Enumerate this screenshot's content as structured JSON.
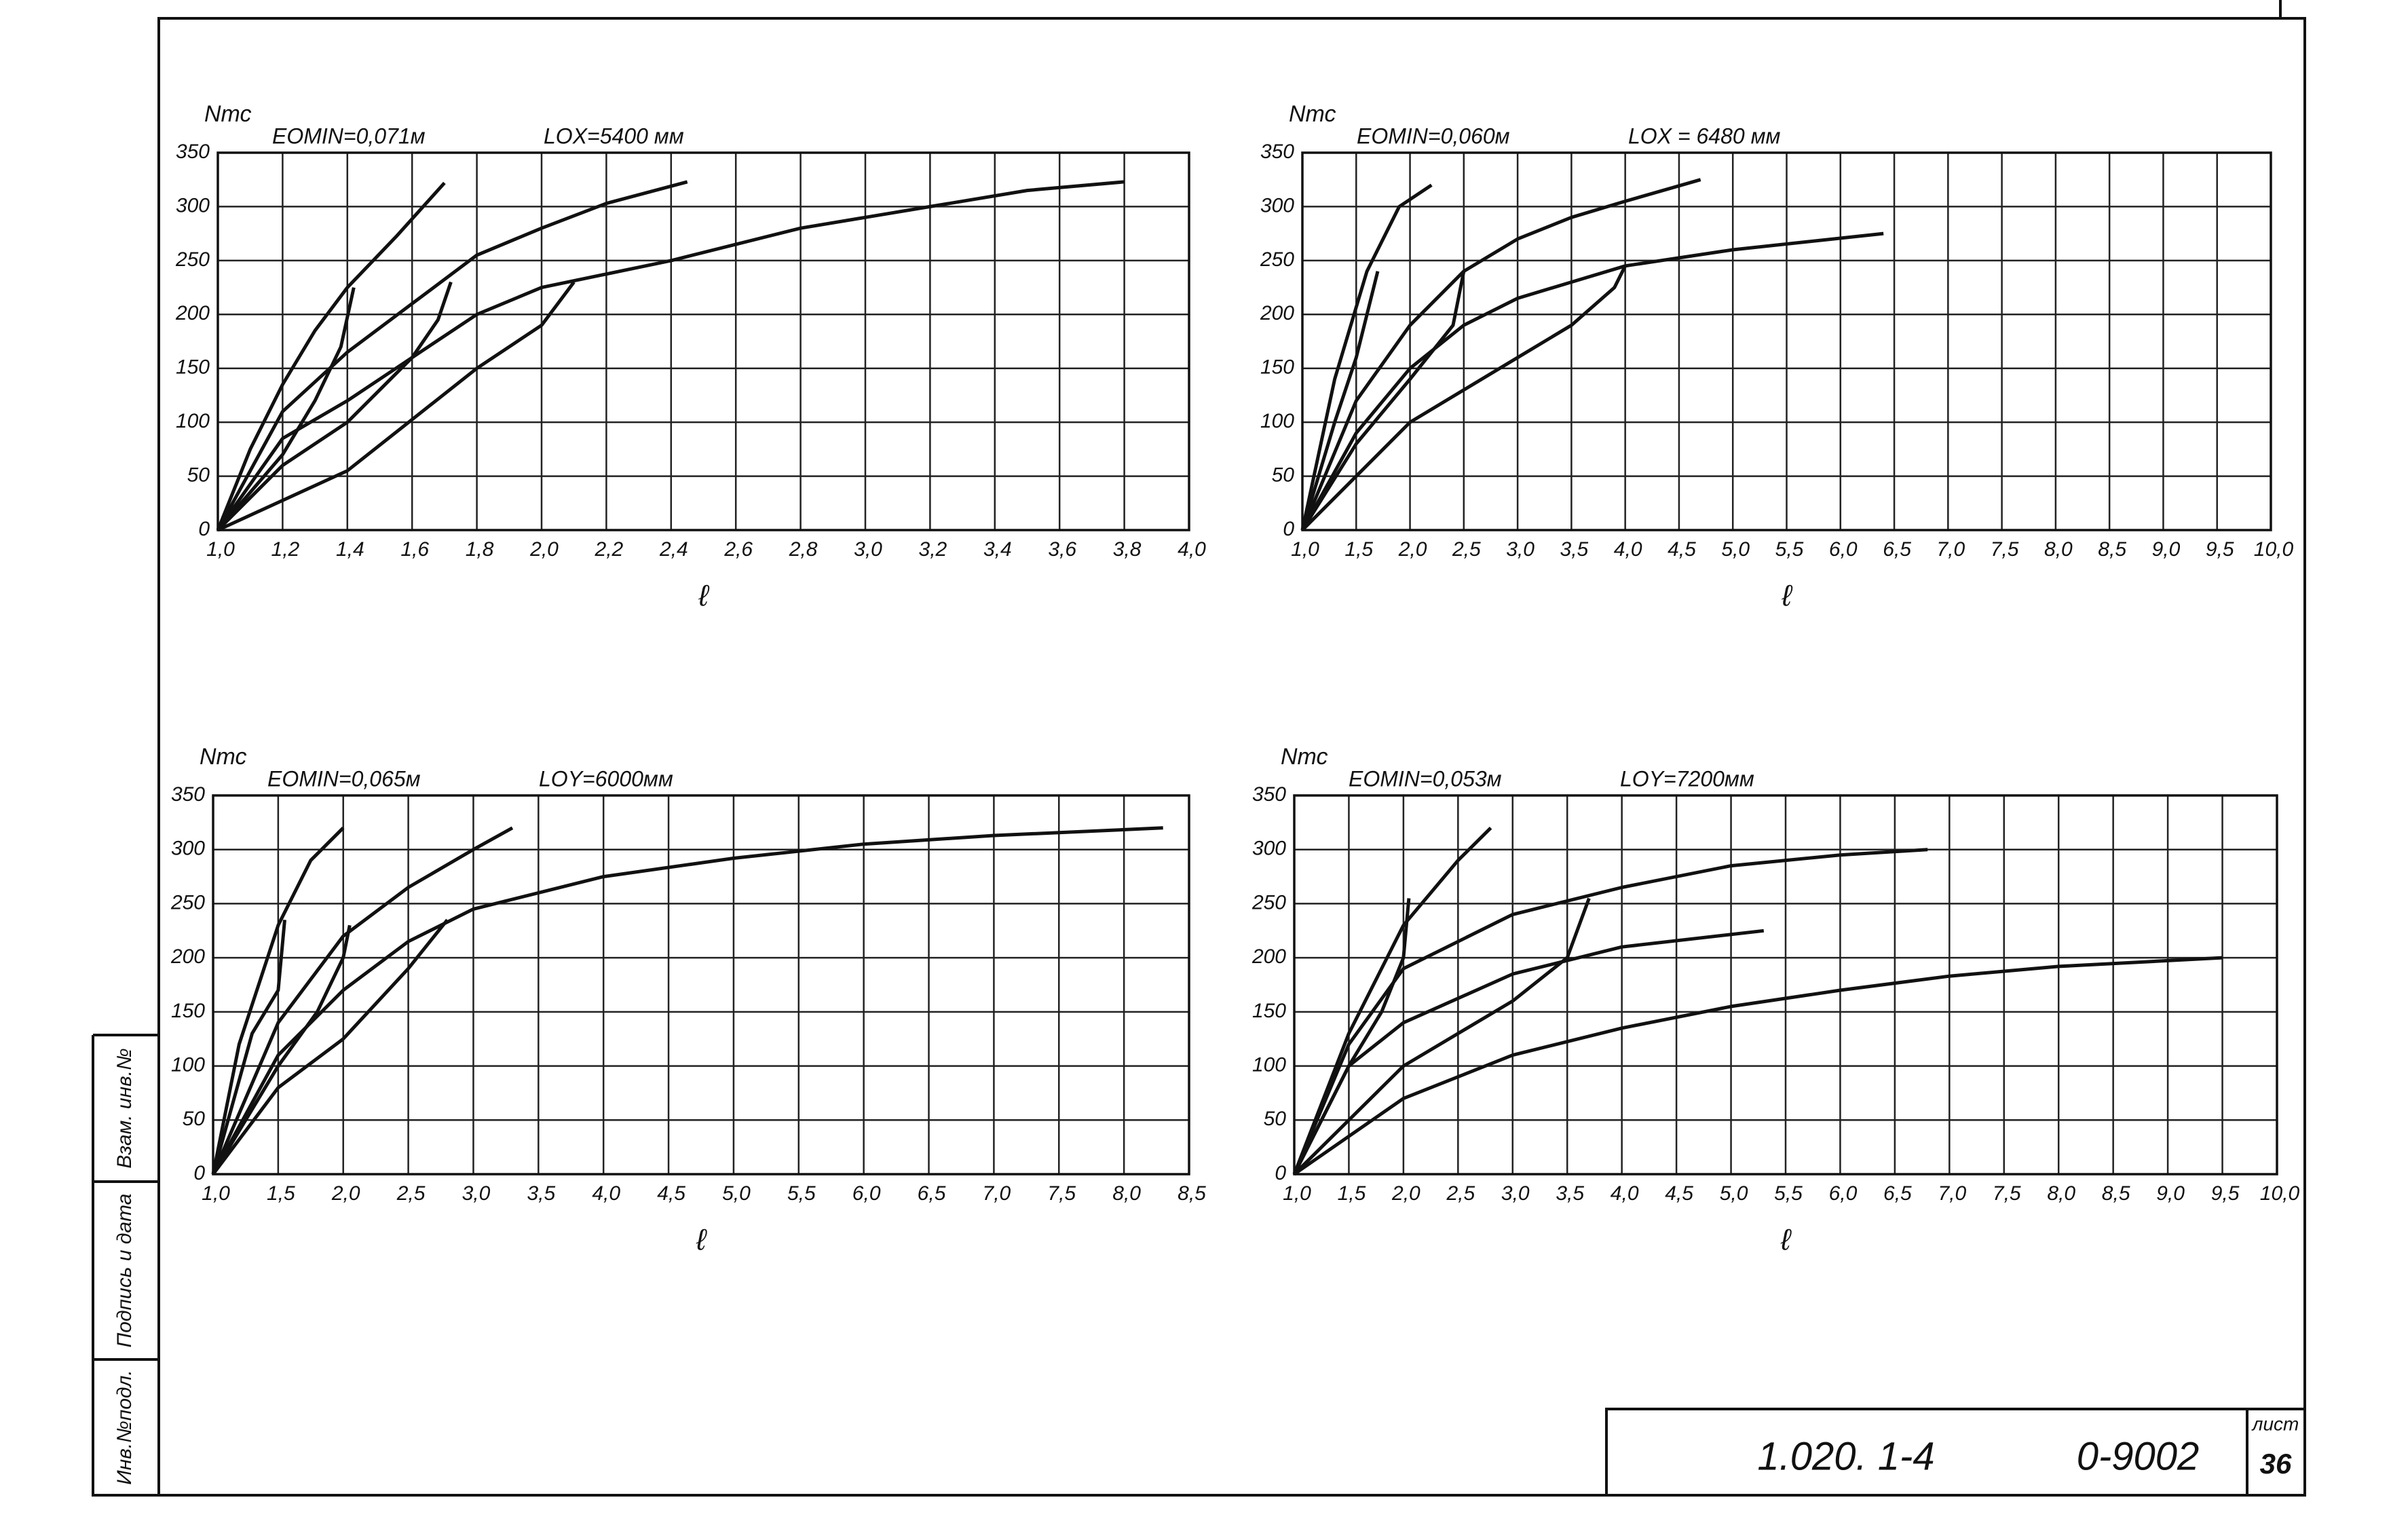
{
  "chart_data": [
    {
      "type": "line",
      "y_label": "Nтс",
      "x_label": "ℓ",
      "annotations": [
        "EOMIN=0,071м",
        "LOX=5400 мм"
      ],
      "grid": true,
      "xlim": [
        1.0,
        4.0
      ],
      "ylim": [
        0,
        350
      ],
      "xticks": [
        {
          "value": 1.0,
          "label": "1,0"
        },
        {
          "value": 1.2,
          "label": "1,2"
        },
        {
          "value": 1.4,
          "label": "1,4"
        },
        {
          "value": 1.6,
          "label": "1,6"
        },
        {
          "value": 1.8,
          "label": "1,8"
        },
        {
          "value": 2.0,
          "label": "2,0"
        },
        {
          "value": 2.2,
          "label": "2,2"
        },
        {
          "value": 2.4,
          "label": "2,4"
        },
        {
          "value": 2.6,
          "label": "2,6"
        },
        {
          "value": 2.8,
          "label": "2,8"
        },
        {
          "value": 3.0,
          "label": "3,0"
        },
        {
          "value": 3.2,
          "label": "3,2"
        },
        {
          "value": 3.4,
          "label": "3,4"
        },
        {
          "value": 3.6,
          "label": "3,6"
        },
        {
          "value": 3.8,
          "label": "3,8"
        },
        {
          "value": 4.0,
          "label": "4,0"
        }
      ],
      "yticks": [
        0,
        50,
        100,
        150,
        200,
        250,
        300,
        350
      ],
      "series": [
        {
          "color": "#111",
          "x": [
            1.0,
            1.1,
            1.2,
            1.3,
            1.4,
            1.55,
            1.7
          ],
          "values": [
            0,
            75,
            135,
            185,
            225,
            272,
            322
          ]
        },
        {
          "color": "#111",
          "x": [
            1.0,
            1.2,
            1.3,
            1.38,
            1.42
          ],
          "values": [
            0,
            70,
            120,
            170,
            225
          ]
        },
        {
          "color": "#111",
          "x": [
            1.0,
            1.2,
            1.4,
            1.6,
            1.8,
            2.0,
            2.2,
            2.45
          ],
          "values": [
            0,
            110,
            165,
            210,
            255,
            280,
            303,
            323
          ]
        },
        {
          "color": "#111",
          "x": [
            1.0,
            1.2,
            1.4,
            1.6,
            1.68,
            1.72
          ],
          "values": [
            0,
            60,
            100,
            160,
            195,
            230
          ]
        },
        {
          "color": "#111",
          "x": [
            1.0,
            1.2,
            1.4,
            1.6,
            1.8,
            2.0,
            2.4,
            2.8,
            3.2,
            3.5,
            3.8
          ],
          "values": [
            0,
            85,
            120,
            160,
            200,
            225,
            250,
            280,
            300,
            315,
            323
          ]
        },
        {
          "color": "#111",
          "x": [
            1.0,
            1.4,
            1.8,
            2.0,
            2.1
          ],
          "values": [
            0,
            55,
            150,
            190,
            230
          ]
        }
      ]
    },
    {
      "type": "line",
      "y_label": "Nтс",
      "x_label": "ℓ",
      "annotations": [
        "EOMIN=0,060м",
        "LOX = 6480 мм"
      ],
      "grid": true,
      "xlim": [
        1.0,
        10.0
      ],
      "ylim": [
        0,
        350
      ],
      "xticks": [
        {
          "value": 1.0,
          "label": "1,0"
        },
        {
          "value": 1.5,
          "label": "1,5"
        },
        {
          "value": 2.0,
          "label": "2,0"
        },
        {
          "value": 2.5,
          "label": "2,5"
        },
        {
          "value": 3.0,
          "label": "3,0"
        },
        {
          "value": 3.5,
          "label": "3,5"
        },
        {
          "value": 4.0,
          "label": "4,0"
        },
        {
          "value": 4.5,
          "label": "4,5"
        },
        {
          "value": 5.0,
          "label": "5,0"
        },
        {
          "value": 5.5,
          "label": "5,5"
        },
        {
          "value": 6.0,
          "label": "6,0"
        },
        {
          "value": 6.5,
          "label": "6,5"
        },
        {
          "value": 7.0,
          "label": "7,0"
        },
        {
          "value": 7.5,
          "label": "7,5"
        },
        {
          "value": 8.0,
          "label": "8,0"
        },
        {
          "value": 8.5,
          "label": "8,5"
        },
        {
          "value": 9.0,
          "label": "9,0"
        },
        {
          "value": 9.5,
          "label": "9,5"
        },
        {
          "value": 10.0,
          "label": "10,0"
        }
      ],
      "yticks": [
        0,
        50,
        100,
        150,
        200,
        250,
        300,
        350
      ],
      "series": [
        {
          "color": "#111",
          "x": [
            1.0,
            1.3,
            1.6,
            1.9,
            2.2
          ],
          "values": [
            0,
            140,
            240,
            300,
            320
          ]
        },
        {
          "color": "#111",
          "x": [
            1.0,
            1.3,
            1.5,
            1.7
          ],
          "values": [
            0,
            100,
            160,
            240
          ]
        },
        {
          "color": "#111",
          "x": [
            1.0,
            1.5,
            2.0,
            2.5,
            3.0,
            3.5,
            4.0,
            4.7
          ],
          "values": [
            0,
            120,
            190,
            240,
            270,
            290,
            305,
            325
          ]
        },
        {
          "color": "#111",
          "x": [
            1.0,
            1.5,
            2.0,
            2.4,
            2.5
          ],
          "values": [
            0,
            80,
            140,
            190,
            240
          ]
        },
        {
          "color": "#111",
          "x": [
            1.0,
            1.5,
            2.0,
            2.5,
            3.0,
            3.5,
            4.0,
            5.0,
            6.4
          ],
          "values": [
            0,
            90,
            150,
            190,
            215,
            230,
            245,
            260,
            275
          ]
        },
        {
          "color": "#111",
          "x": [
            1.0,
            2.0,
            3.0,
            3.5,
            3.9,
            4.0
          ],
          "values": [
            0,
            100,
            160,
            190,
            225,
            245
          ]
        }
      ]
    },
    {
      "type": "line",
      "y_label": "Nтс",
      "x_label": "ℓ",
      "annotations": [
        "EOMIN=0,065м",
        "LOY=6000мм"
      ],
      "grid": true,
      "xlim": [
        1.0,
        8.5
      ],
      "ylim": [
        0,
        350
      ],
      "xticks": [
        {
          "value": 1.0,
          "label": "1,0"
        },
        {
          "value": 1.5,
          "label": "1,5"
        },
        {
          "value": 2.0,
          "label": "2,0"
        },
        {
          "value": 2.5,
          "label": "2,5"
        },
        {
          "value": 3.0,
          "label": "3,0"
        },
        {
          "value": 3.5,
          "label": "3,5"
        },
        {
          "value": 4.0,
          "label": "4,0"
        },
        {
          "value": 4.5,
          "label": "4,5"
        },
        {
          "value": 5.0,
          "label": "5,0"
        },
        {
          "value": 5.5,
          "label": "5,5"
        },
        {
          "value": 6.0,
          "label": "6,0"
        },
        {
          "value": 6.5,
          "label": "6,5"
        },
        {
          "value": 7.0,
          "label": "7,0"
        },
        {
          "value": 7.5,
          "label": "7,5"
        },
        {
          "value": 8.0,
          "label": "8,0"
        },
        {
          "value": 8.5,
          "label": "8,5"
        }
      ],
      "yticks": [
        0,
        50,
        100,
        150,
        200,
        250,
        300,
        350
      ],
      "series": [
        {
          "color": "#111",
          "x": [
            1.0,
            1.2,
            1.5,
            1.75,
            2.0
          ],
          "values": [
            0,
            120,
            230,
            290,
            320
          ]
        },
        {
          "color": "#111",
          "x": [
            1.0,
            1.3,
            1.5,
            1.55
          ],
          "values": [
            0,
            130,
            170,
            235
          ]
        },
        {
          "color": "#111",
          "x": [
            1.0,
            1.5,
            2.0,
            2.5,
            3.0,
            3.3
          ],
          "values": [
            0,
            140,
            220,
            265,
            300,
            320
          ]
        },
        {
          "color": "#111",
          "x": [
            1.0,
            1.5,
            1.8,
            2.0,
            2.05
          ],
          "values": [
            0,
            100,
            150,
            200,
            230
          ]
        },
        {
          "color": "#111",
          "x": [
            1.0,
            1.5,
            2.0,
            2.5,
            3.0,
            4.0,
            5.0,
            6.0,
            7.0,
            8.3
          ],
          "values": [
            0,
            110,
            170,
            215,
            245,
            275,
            292,
            305,
            313,
            320
          ]
        },
        {
          "color": "#111",
          "x": [
            1.0,
            1.5,
            2.0,
            2.5,
            2.8
          ],
          "values": [
            0,
            80,
            125,
            190,
            235
          ]
        }
      ]
    },
    {
      "type": "line",
      "y_label": "Nтс",
      "x_label": "ℓ",
      "annotations": [
        "EOMIN=0,053м",
        "LOY=7200мм"
      ],
      "grid": true,
      "xlim": [
        1.0,
        10.0
      ],
      "ylim": [
        0,
        350
      ],
      "xticks": [
        {
          "value": 1.0,
          "label": "1,0"
        },
        {
          "value": 1.5,
          "label": "1,5"
        },
        {
          "value": 2.0,
          "label": "2,0"
        },
        {
          "value": 2.5,
          "label": "2,5"
        },
        {
          "value": 3.0,
          "label": "3,0"
        },
        {
          "value": 3.5,
          "label": "3,5"
        },
        {
          "value": 4.0,
          "label": "4,0"
        },
        {
          "value": 4.5,
          "label": "4,5"
        },
        {
          "value": 5.0,
          "label": "5,0"
        },
        {
          "value": 5.5,
          "label": "5,5"
        },
        {
          "value": 6.0,
          "label": "6,0"
        },
        {
          "value": 6.5,
          "label": "6,5"
        },
        {
          "value": 7.0,
          "label": "7,0"
        },
        {
          "value": 7.5,
          "label": "7,5"
        },
        {
          "value": 8.0,
          "label": "8,0"
        },
        {
          "value": 8.5,
          "label": "8,5"
        },
        {
          "value": 9.0,
          "label": "9,0"
        },
        {
          "value": 9.5,
          "label": "9,5"
        },
        {
          "value": 10.0,
          "label": "10,0"
        }
      ],
      "yticks": [
        0,
        50,
        100,
        150,
        200,
        250,
        300,
        350
      ],
      "series": [
        {
          "color": "#111",
          "x": [
            1.0,
            1.5,
            2.0,
            2.5,
            2.8
          ],
          "values": [
            0,
            130,
            230,
            290,
            320
          ]
        },
        {
          "color": "#111",
          "x": [
            1.0,
            1.5,
            1.8,
            2.0,
            2.05
          ],
          "values": [
            0,
            100,
            150,
            200,
            255
          ]
        },
        {
          "color": "#111",
          "x": [
            1.0,
            1.5,
            2.0,
            3.0,
            4.0,
            5.0,
            6.0,
            6.8
          ],
          "values": [
            0,
            120,
            190,
            240,
            265,
            285,
            295,
            300
          ]
        },
        {
          "color": "#111",
          "x": [
            1.0,
            2.0,
            3.0,
            3.5,
            3.7
          ],
          "values": [
            0,
            100,
            160,
            200,
            255
          ]
        },
        {
          "color": "#111",
          "x": [
            1.0,
            1.5,
            2.0,
            3.0,
            4.0,
            5.3
          ],
          "values": [
            0,
            100,
            140,
            185,
            210,
            225
          ]
        },
        {
          "color": "#111",
          "x": [
            1.0,
            2.0,
            3.0,
            4.0,
            5.0,
            6.0,
            7.0,
            8.0,
            9.5
          ],
          "values": [
            0,
            70,
            110,
            135,
            155,
            170,
            183,
            192,
            200
          ]
        }
      ]
    }
  ],
  "title_block": {
    "code": "1.020. 1-4",
    "doc": "0-9002",
    "sheet_label": "лист",
    "sheet": "36"
  },
  "side_stamp": [
    "Взам. инв.№",
    "Подпись и дата",
    "Инв.№подл."
  ]
}
